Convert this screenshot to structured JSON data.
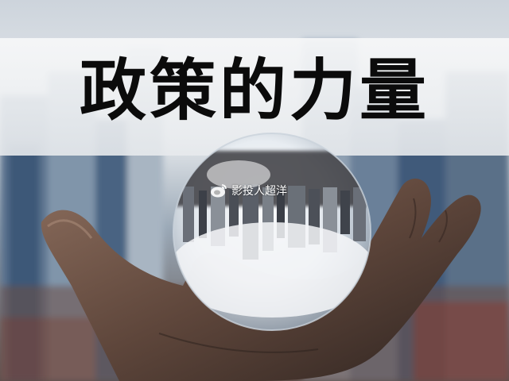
{
  "headline": "政策的力量",
  "watermark": {
    "icon": "weibo-icon",
    "text": "影投人超洋"
  },
  "colors": {
    "headline": "#0b0b0b",
    "sky": "#e9ecef",
    "city_blue": "#3c5878",
    "hand": "#6b5143"
  }
}
